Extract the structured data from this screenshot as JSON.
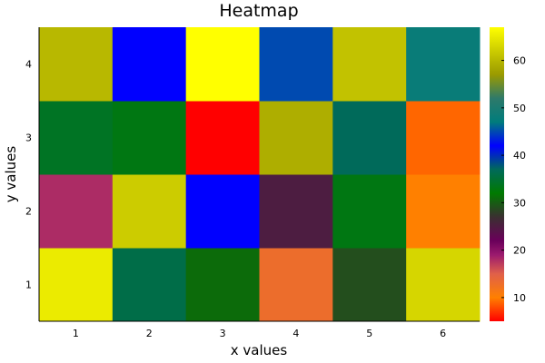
{
  "chart_data": {
    "type": "heatmap",
    "title": "Heatmap",
    "xlabel": "x values",
    "ylabel": "y values",
    "x": [
      1,
      2,
      3,
      4,
      5,
      6
    ],
    "y": [
      1,
      2,
      3,
      4
    ],
    "x_ticks": [
      "1",
      "2",
      "3",
      "4",
      "5",
      "6"
    ],
    "y_ticks": [
      "1",
      "2",
      "3",
      "4"
    ],
    "z": [
      [
        65,
        36,
        31,
        13,
        29,
        63
      ],
      [
        18,
        62,
        42,
        25,
        33,
        10
      ],
      [
        34,
        33,
        5,
        59,
        37,
        9
      ],
      [
        60,
        42,
        67,
        45,
        61,
        48
      ]
    ],
    "colorbar": {
      "min": 5,
      "max": 67,
      "ticks": [
        10,
        20,
        30,
        40,
        50,
        60
      ],
      "tick_labels": [
        "10",
        "20",
        "30",
        "40",
        "50",
        "60"
      ],
      "colormap": [
        {
          "v": 5,
          "color": "#ff0000"
        },
        {
          "v": 10,
          "color": "#ff8000"
        },
        {
          "v": 15,
          "color": "#e0604a"
        },
        {
          "v": 19,
          "color": "#9b1a6e"
        },
        {
          "v": 22,
          "color": "#6a005a"
        },
        {
          "v": 27,
          "color": "#3a3030"
        },
        {
          "v": 32,
          "color": "#007a00"
        },
        {
          "v": 37,
          "color": "#006a5a"
        },
        {
          "v": 42,
          "color": "#0000ff"
        },
        {
          "v": 47,
          "color": "#007c7c"
        },
        {
          "v": 52,
          "color": "#2e7a6a"
        },
        {
          "v": 57,
          "color": "#9a9a00"
        },
        {
          "v": 62,
          "color": "#cccc00"
        },
        {
          "v": 67,
          "color": "#ffff00"
        }
      ]
    },
    "grid": false,
    "legend": "colorbar-right"
  }
}
